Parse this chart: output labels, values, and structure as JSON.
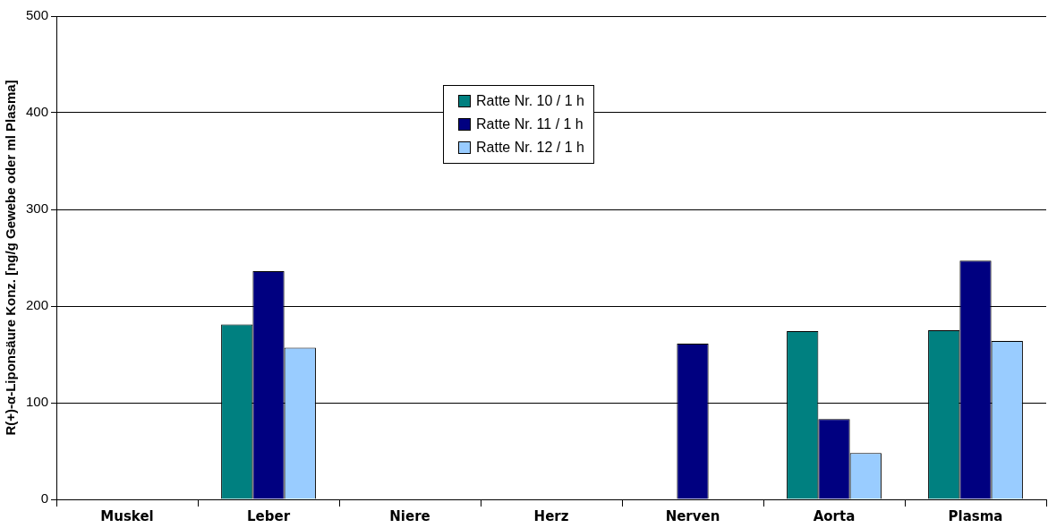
{
  "chart_data": {
    "type": "bar",
    "ylabel": "R(+)-α-Liponsäure Konz. [ng/g Gewebe oder ml Plasma]",
    "categories": [
      "Muskel",
      "Leber",
      "Niere",
      "Herz",
      "Nerven",
      "Aorta",
      "Plasma"
    ],
    "series": [
      {
        "name": "Ratte Nr. 10 / 1 h",
        "color": "#008080",
        "values": [
          null,
          181,
          null,
          null,
          null,
          174,
          175
        ]
      },
      {
        "name": "Ratte Nr. 11 / 1 h",
        "color": "#000080",
        "values": [
          null,
          236,
          null,
          null,
          161,
          83,
          247
        ]
      },
      {
        "name": "Ratte Nr. 12 / 1 h",
        "color": "#99ccff",
        "values": [
          null,
          157,
          null,
          null,
          null,
          48,
          164
        ]
      }
    ],
    "ylim": [
      0,
      500
    ],
    "yticks": [
      0,
      100,
      200,
      300,
      400,
      500
    ],
    "grid": "y",
    "legend": "top"
  }
}
